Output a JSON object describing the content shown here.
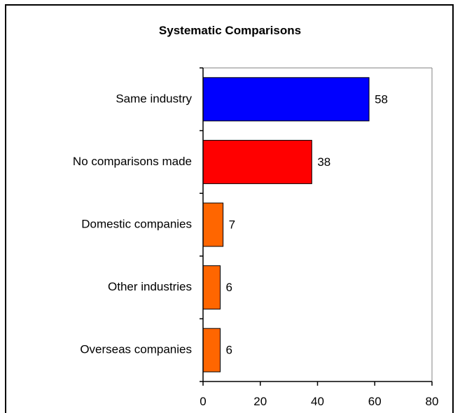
{
  "chart_data": {
    "type": "bar",
    "orientation": "horizontal",
    "title": "Systematic Comparisons",
    "categories": [
      "Same industry",
      "No comparisons made",
      "Domestic companies",
      "Other industries",
      "Overseas companies"
    ],
    "values": [
      58,
      38,
      7,
      6,
      6
    ],
    "data_labels": [
      "58",
      "38",
      "7",
      "6",
      "6"
    ],
    "bar_colors": [
      "#0000ff",
      "#ff0000",
      "#ff6600",
      "#ff6600",
      "#ff6600"
    ],
    "xlim": [
      0,
      80
    ],
    "x_ticks": [
      0,
      20,
      40,
      60,
      80
    ],
    "x_tick_labels": [
      "0",
      "20",
      "40",
      "60",
      "80"
    ],
    "xlabel": "",
    "ylabel": "",
    "grid": false,
    "legend": "none"
  }
}
